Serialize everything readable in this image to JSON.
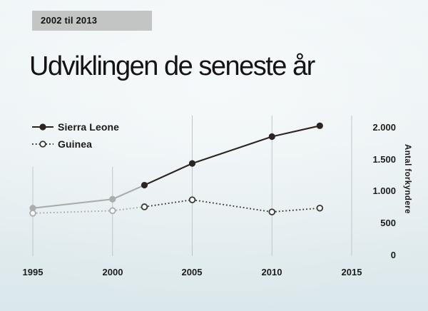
{
  "slide": {
    "badge": "2002 til 2013",
    "title": "Udviklingen de seneste år"
  },
  "chart_data": {
    "type": "line",
    "title": "Udviklingen de seneste år",
    "subtitle_badge": "2002 til 2013",
    "x": [
      1995,
      2000,
      2002,
      2005,
      2010,
      2013
    ],
    "series": [
      {
        "name": "Sierra Leone",
        "values": [
          740,
          880,
          1100,
          1440,
          1860,
          2030
        ],
        "line_style": "solid",
        "marker": "filled-circle"
      },
      {
        "name": "Guinea",
        "values": [
          660,
          700,
          760,
          870,
          680,
          740
        ],
        "line_style": "dotted",
        "marker": "open-circle"
      }
    ],
    "highlight_range": [
      2002,
      2013
    ],
    "muted_note": "values before 2002 are drawn in gray",
    "xlabel": "",
    "ylabel": "Antal forkyndere",
    "xlim": [
      1995,
      2015
    ],
    "ylim": [
      0,
      2000
    ],
    "x_ticks": [
      1995,
      2000,
      2005,
      2010,
      2015
    ],
    "x_tick_labels": [
      "1995",
      "2000",
      "2005",
      "2010",
      "2015"
    ],
    "y_ticks": [
      0,
      500,
      1000,
      1500,
      2000
    ],
    "y_tick_labels": [
      "0",
      "500",
      "1.000",
      "1.500",
      "2.000"
    ],
    "grid": "vertical-only",
    "legend_position": "top-left",
    "colors": {
      "dark_line": "#2d2421",
      "dark_dotted": "#3e3833",
      "muted_gray": "#a9adac",
      "gridline": "#bdc8cb",
      "open_marker_fill": "#f4fafb",
      "background_top": "#eef4f6",
      "background_bottom": "#dbe8eb",
      "badge_bg": "#c3c4c4",
      "text": "#141414"
    }
  }
}
